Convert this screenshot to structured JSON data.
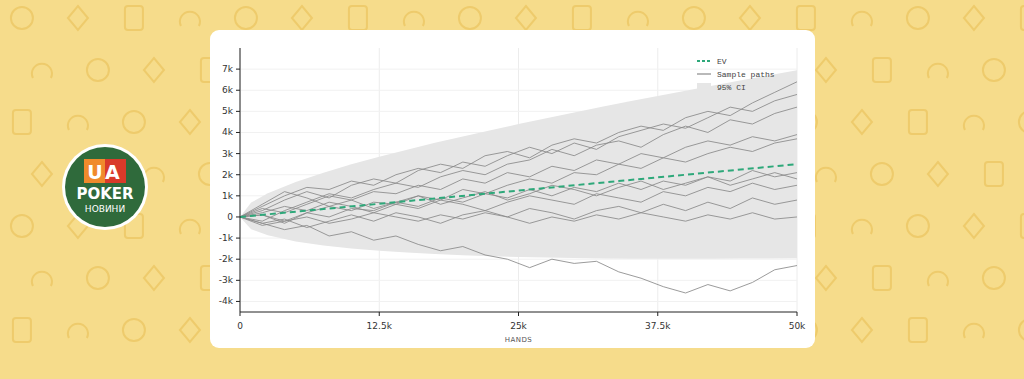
{
  "logo": {
    "line1": "UA",
    "line2": "POKER",
    "line3": "НОВИНИ"
  },
  "chart_data": {
    "type": "line",
    "xlabel": "HANDS",
    "xlim": [
      0,
      50000
    ],
    "ylim": [
      -4500,
      8000
    ],
    "xticks": [
      0,
      {
        "value": 12500,
        "label": "12.5k"
      },
      {
        "value": 25000,
        "label": "25k"
      },
      {
        "value": 37500,
        "label": "37.5k"
      },
      {
        "value": 50000,
        "label": "50k"
      }
    ],
    "yticks": [
      {
        "value": -4000,
        "label": "-4k"
      },
      {
        "value": -3000,
        "label": "-3k"
      },
      {
        "value": -2000,
        "label": "-2k"
      },
      {
        "value": -1000,
        "label": "-1k"
      },
      0,
      {
        "value": 1000,
        "label": "1k"
      },
      {
        "value": 2000,
        "label": "2k"
      },
      {
        "value": 3000,
        "label": "3k"
      },
      {
        "value": 4000,
        "label": "4k"
      },
      {
        "value": 5000,
        "label": "5k"
      },
      {
        "value": 6000,
        "label": "6k"
      },
      {
        "value": 7000,
        "label": "7k"
      }
    ],
    "grid": true,
    "legend": "upper right",
    "x": [
      0,
      2000,
      4000,
      6000,
      8000,
      10000,
      12000,
      14000,
      16000,
      18000,
      20000,
      22000,
      24000,
      26000,
      28000,
      30000,
      32000,
      34000,
      36000,
      38000,
      40000,
      42000,
      44000,
      46000,
      48000,
      50000
    ],
    "series": [
      {
        "name": "95% CI",
        "type": "band",
        "color": "#e6e6e6",
        "x": [
          0,
          1000,
          2500,
          5000,
          7500,
          10000,
          12500,
          15000,
          17500,
          20000,
          22500,
          25000,
          27500,
          30000,
          32500,
          35000,
          37500,
          40000,
          42500,
          45000,
          47500,
          50000
        ],
        "upper": [
          0,
          679,
          1120,
          1657,
          2098,
          2490,
          2850,
          3187,
          3508,
          3814,
          4110,
          4397,
          4675,
          4947,
          5213,
          5473,
          5729,
          5980,
          6228,
          6472,
          6712,
          6950
        ],
        "lower": [
          0,
          -579,
          -870,
          -1157,
          -1348,
          -1490,
          -1600,
          -1687,
          -1758,
          -1814,
          -1860,
          -1897,
          -1925,
          -1947,
          -1963,
          -1973,
          -1979,
          -1980,
          -1978,
          -1972,
          -1962,
          -1950
        ]
      },
      {
        "name": "Sample paths",
        "color": "#8a8a8a",
        "values": [
          0,
          300,
          800,
          1200,
          900,
          1500,
          1800,
          1600,
          2200,
          2500,
          2300,
          2900,
          3100,
          2800,
          3400,
          3700,
          3500,
          4000,
          4300,
          4100,
          4700,
          5000,
          4800,
          5400,
          5900,
          6400
        ]
      },
      {
        "color": "#8a8a8a",
        "values": [
          0,
          500,
          1000,
          1400,
          1300,
          1700,
          1500,
          2000,
          2300,
          2100,
          2600,
          2400,
          2900,
          3300,
          3000,
          3500,
          3200,
          3800,
          4100,
          4400,
          4200,
          4700,
          5200,
          5000,
          5500,
          5800
        ]
      },
      {
        "color": "#8a8a8a",
        "values": [
          0,
          -200,
          300,
          700,
          1100,
          900,
          1300,
          1600,
          1400,
          1900,
          2200,
          2000,
          2500,
          2700,
          3200,
          2900,
          3400,
          3600,
          3300,
          3900,
          4300,
          4000,
          4600,
          4400,
          4900,
          5200
        ]
      },
      {
        "color": "#8a8a8a",
        "values": [
          0,
          400,
          200,
          600,
          1000,
          800,
          1200,
          1100,
          1500,
          1300,
          1800,
          1600,
          2100,
          1900,
          2400,
          2200,
          2700,
          2500,
          3000,
          2800,
          3300,
          3600,
          3400,
          3800,
          3600,
          3900
        ]
      },
      {
        "color": "#8a8a8a",
        "values": [
          0,
          100,
          -300,
          200,
          500,
          300,
          700,
          600,
          1000,
          800,
          1300,
          1100,
          1500,
          1800,
          1600,
          2100,
          2000,
          2500,
          2300,
          2800,
          2600,
          3000,
          3300,
          3100,
          3500,
          3700
        ]
      },
      {
        "color": "#8a8a8a",
        "values": [
          0,
          -400,
          -200,
          200,
          0,
          400,
          300,
          700,
          500,
          900,
          700,
          1100,
          900,
          1300,
          1000,
          1400,
          1200,
          1600,
          1300,
          1700,
          1500,
          1900,
          1700,
          2200,
          1900,
          2100
        ]
      },
      {
        "color": "#8a8a8a",
        "values": [
          0,
          200,
          500,
          300,
          700,
          500,
          200,
          600,
          400,
          800,
          600,
          300,
          700,
          1000,
          800,
          600,
          1100,
          900,
          700,
          1200,
          1000,
          1400,
          1200,
          1600,
          1300,
          1500
        ]
      },
      {
        "color": "#8a8a8a",
        "values": [
          0,
          -300,
          -100,
          -500,
          -200,
          100,
          -200,
          200,
          0,
          -300,
          100,
          300,
          0,
          400,
          200,
          -100,
          300,
          500,
          200,
          600,
          300,
          700,
          400,
          900,
          600,
          800
        ]
      },
      {
        "color": "#8a8a8a",
        "values": [
          0,
          100,
          -200,
          0,
          -300,
          -100,
          200,
          0,
          -200,
          100,
          -100,
          200,
          0,
          -300,
          0,
          -200,
          100,
          -100,
          200,
          0,
          -200,
          100,
          -100,
          200,
          -100,
          0
        ]
      },
      {
        "color": "#8a8a8a",
        "values": [
          0,
          -300,
          -600,
          -400,
          -900,
          -700,
          -1100,
          -900,
          -1300,
          -1600,
          -1400,
          -1800,
          -2000,
          -2400,
          -2000,
          -2200,
          -2100,
          -2600,
          -2900,
          -3300,
          -3600,
          -3200,
          -3500,
          -3100,
          -2500,
          -2300
        ]
      },
      {
        "color": "#8a8a8a",
        "values": [
          0,
          600,
          1200,
          900,
          500,
          800,
          400,
          700,
          1000,
          600,
          900,
          1200,
          800,
          1100,
          1500,
          1300,
          1000,
          1400,
          1700,
          1300,
          1600,
          1900,
          1500,
          1800,
          2100,
          1800
        ]
      },
      {
        "name": "EV",
        "color": "#2ea87a",
        "line_style": "dashed",
        "x": [
          0,
          50000
        ],
        "values": [
          0,
          2500
        ]
      }
    ]
  }
}
